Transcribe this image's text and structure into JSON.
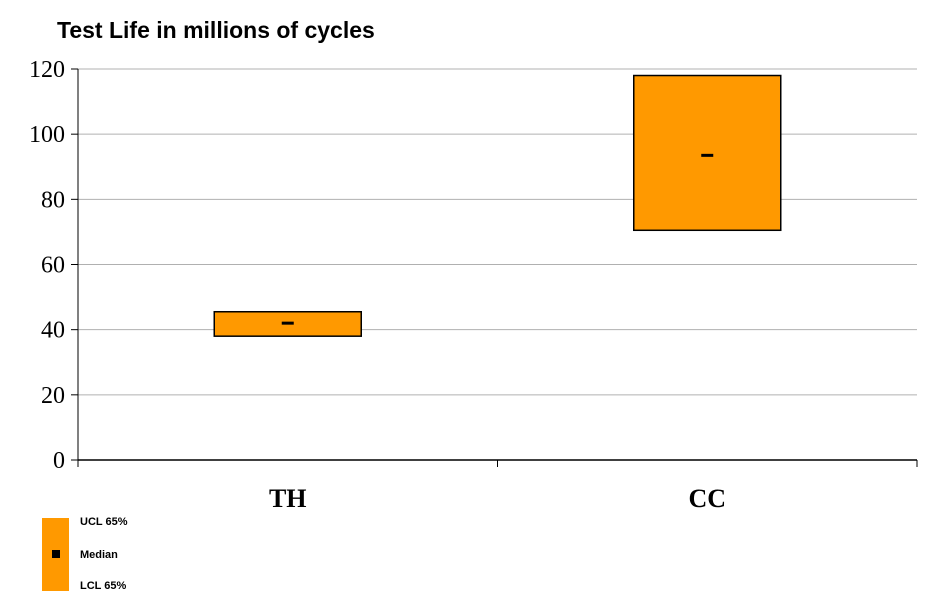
{
  "chart_data": {
    "type": "box",
    "title": "Test Life in millions of cycles",
    "categories": [
      "TH",
      "CC"
    ],
    "series": [
      {
        "name": "UCL 65%",
        "values": [
          45.5,
          118
        ]
      },
      {
        "name": "Median",
        "values": [
          42,
          93.5
        ]
      },
      {
        "name": "LCL 65%",
        "values": [
          38,
          70.5
        ]
      }
    ],
    "ylim": [
      0,
      120
    ],
    "yticks": [
      "0",
      "20",
      "40",
      "60",
      "80",
      "100",
      "120"
    ],
    "grid": true,
    "legend_position": "bottom-left",
    "colors": {
      "box_fill": "#FF9900",
      "box_stroke": "#000000",
      "grid": "#B0B0B0"
    }
  }
}
